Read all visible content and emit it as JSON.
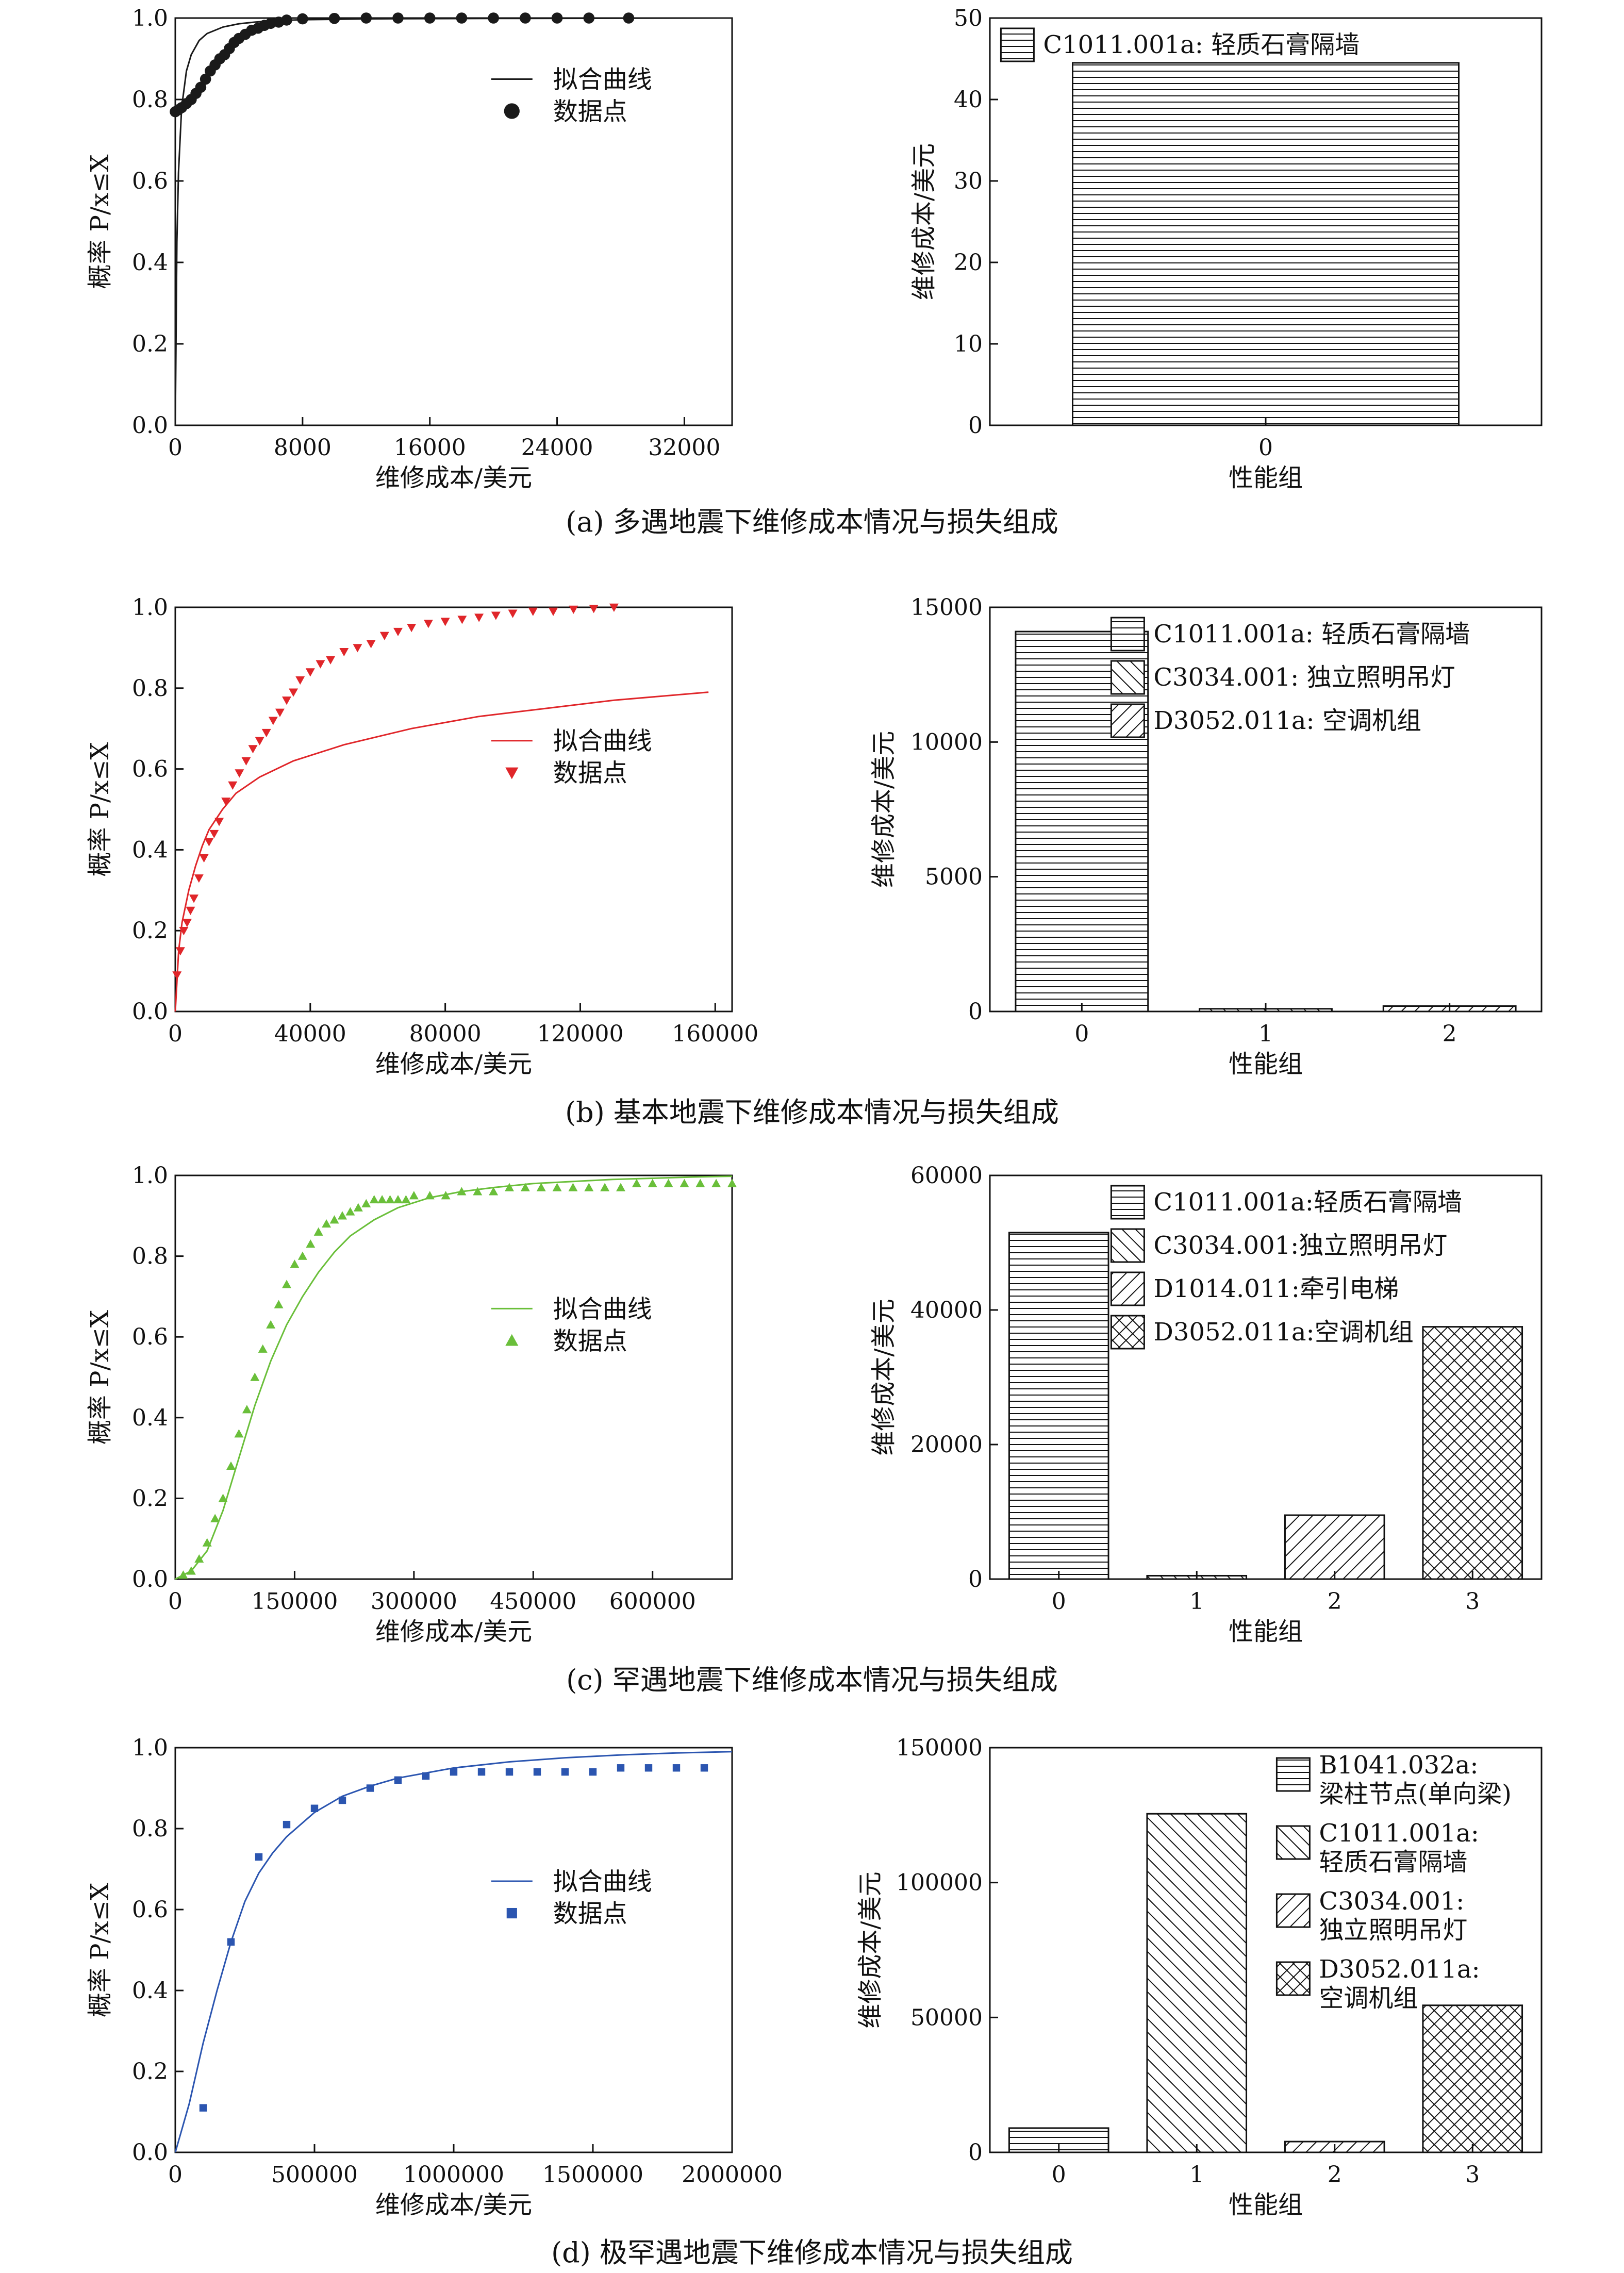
{
  "captions": [
    "(a) 多遇地震下维修成本情况与损失组成",
    "(b) 基本地震下维修成本情况与损失组成",
    "(c) 罕遇地震下维修成本情况与损失组成",
    "(d) 极罕遇地震下维修成本情况与损失组成"
  ],
  "chart_data": [
    {
      "panel": "a-left",
      "type": "line",
      "xlabel": "维修成本/美元",
      "ylabel": "概率 P/x≤X",
      "xlim": [
        0,
        35000
      ],
      "ylim": [
        0,
        1.0
      ],
      "xticks": [
        0,
        8000,
        16000,
        24000,
        32000
      ],
      "yticks": [
        0,
        0.2,
        0.4,
        0.6,
        0.8,
        1.0
      ],
      "color": "#1a1a1a",
      "marker": "circle",
      "legend": [
        "拟合曲线",
        "数据点"
      ],
      "series": [
        {
          "name": "拟合曲线",
          "x": [
            0,
            100,
            200,
            400,
            700,
            1000,
            1500,
            2000,
            3000,
            4000,
            5000,
            6000,
            8000,
            12000,
            20000,
            35000
          ],
          "y": [
            0,
            0.45,
            0.62,
            0.78,
            0.87,
            0.91,
            0.945,
            0.962,
            0.978,
            0.986,
            0.99,
            0.993,
            0.996,
            0.998,
            0.999,
            1.0
          ]
        },
        {
          "name": "数据点",
          "x": [
            0,
            200,
            400,
            700,
            1000,
            1300,
            1600,
            1900,
            2200,
            2500,
            2800,
            3100,
            3400,
            3700,
            4000,
            4400,
            4800,
            5200,
            5600,
            6000,
            6500,
            7000,
            8000,
            10000,
            12000,
            14000,
            16000,
            18000,
            20000,
            22000,
            24000,
            26000,
            28500
          ],
          "y": [
            0.77,
            0.775,
            0.78,
            0.79,
            0.8,
            0.815,
            0.83,
            0.85,
            0.87,
            0.885,
            0.9,
            0.91,
            0.925,
            0.94,
            0.95,
            0.96,
            0.97,
            0.975,
            0.982,
            0.987,
            0.99,
            0.995,
            0.998,
            0.999,
            1.0,
            1.0,
            1.0,
            1.0,
            1.0,
            1.0,
            1.0,
            1.0,
            1.0
          ]
        }
      ]
    },
    {
      "panel": "a-right",
      "type": "bar",
      "xlabel": "性能组",
      "ylabel": "维修成本/美元",
      "ylim": [
        0,
        50
      ],
      "yticks": [
        0,
        10,
        20,
        30,
        40,
        50
      ],
      "categories": [
        "0"
      ],
      "values": [
        44.5
      ],
      "patterns": [
        "hlines"
      ],
      "legend": [
        {
          "label": "C1011.001a: 轻质石膏隔墙",
          "pattern": "hlines"
        }
      ]
    },
    {
      "panel": "b-left",
      "type": "line",
      "xlabel": "维修成本/美元",
      "ylabel": "概率 P/x≤X",
      "xlim": [
        0,
        165000
      ],
      "ylim": [
        0,
        1.0
      ],
      "xticks": [
        0,
        40000,
        80000,
        120000,
        160000
      ],
      "yticks": [
        0,
        0.2,
        0.4,
        0.6,
        0.8,
        1.0
      ],
      "color": "#e0262a",
      "marker": "triangle-down",
      "legend": [
        "拟合曲线",
        "数据点"
      ],
      "series": [
        {
          "name": "拟合曲线",
          "x": [
            0,
            1000,
            2000,
            4000,
            6000,
            8000,
            10000,
            14000,
            18000,
            25000,
            35000,
            50000,
            70000,
            90000,
            110000,
            130000,
            158000
          ],
          "y": [
            0,
            0.15,
            0.22,
            0.3,
            0.36,
            0.41,
            0.45,
            0.5,
            0.54,
            0.58,
            0.62,
            0.66,
            0.7,
            0.73,
            0.75,
            0.77,
            0.79
          ]
        },
        {
          "name": "数据点",
          "x": [
            500,
            1500,
            2500,
            3500,
            4500,
            5500,
            7000,
            8500,
            10000,
            11500,
            13000,
            15000,
            17000,
            19000,
            21000,
            23000,
            25000,
            27000,
            29000,
            31000,
            33000,
            35000,
            37000,
            40000,
            43000,
            46000,
            50000,
            54000,
            58000,
            62000,
            66000,
            70000,
            75000,
            80000,
            85000,
            90000,
            95000,
            100000,
            106000,
            112000,
            118000,
            124000,
            130000
          ],
          "y": [
            0.09,
            0.15,
            0.2,
            0.22,
            0.25,
            0.28,
            0.33,
            0.38,
            0.42,
            0.44,
            0.47,
            0.52,
            0.56,
            0.59,
            0.62,
            0.65,
            0.67,
            0.69,
            0.72,
            0.74,
            0.77,
            0.79,
            0.82,
            0.84,
            0.86,
            0.87,
            0.89,
            0.9,
            0.91,
            0.93,
            0.94,
            0.95,
            0.96,
            0.965,
            0.97,
            0.975,
            0.98,
            0.985,
            0.99,
            0.99,
            0.995,
            0.997,
            1.0
          ]
        }
      ]
    },
    {
      "panel": "b-right",
      "type": "bar",
      "xlabel": "性能组",
      "ylabel": "维修成本/美元",
      "ylim": [
        0,
        15000
      ],
      "yticks": [
        0,
        5000,
        10000,
        15000
      ],
      "categories": [
        "0",
        "1",
        "2"
      ],
      "values": [
        14100,
        100,
        200
      ],
      "patterns": [
        "hlines",
        "backdiag",
        "fwddiag"
      ],
      "legend": [
        {
          "label": "C1011.001a: 轻质石膏隔墙",
          "pattern": "hlines"
        },
        {
          "label": "C3034.001: 独立照明吊灯",
          "pattern": "backdiag"
        },
        {
          "label": "D3052.011a: 空调机组",
          "pattern": "fwddiag"
        }
      ]
    },
    {
      "panel": "c-left",
      "type": "line",
      "xlabel": "维修成本/美元",
      "ylabel": "概率 P/x≤X",
      "xlim": [
        0,
        700000
      ],
      "ylim": [
        0,
        1.0
      ],
      "xticks": [
        0,
        150000,
        300000,
        450000,
        600000
      ],
      "yticks": [
        0,
        0.2,
        0.4,
        0.6,
        0.8,
        1.0
      ],
      "color": "#6abf3a",
      "marker": "triangle-up",
      "legend": [
        "拟合曲线",
        "数据点"
      ],
      "series": [
        {
          "name": "拟合曲线",
          "x": [
            0,
            20000,
            40000,
            60000,
            80000,
            100000,
            120000,
            140000,
            160000,
            180000,
            200000,
            220000,
            250000,
            280000,
            320000,
            360000,
            400000,
            450000,
            500000,
            550000,
            600000,
            650000,
            700000
          ],
          "y": [
            0,
            0.02,
            0.07,
            0.17,
            0.3,
            0.43,
            0.54,
            0.63,
            0.7,
            0.76,
            0.81,
            0.85,
            0.89,
            0.92,
            0.945,
            0.96,
            0.97,
            0.98,
            0.985,
            0.99,
            0.993,
            0.996,
            0.998
          ]
        },
        {
          "name": "数据点",
          "x": [
            10000,
            20000,
            30000,
            40000,
            50000,
            60000,
            70000,
            80000,
            90000,
            100000,
            110000,
            120000,
            130000,
            140000,
            150000,
            160000,
            170000,
            180000,
            190000,
            200000,
            210000,
            220000,
            230000,
            240000,
            250000,
            260000,
            270000,
            280000,
            290000,
            300000,
            320000,
            340000,
            360000,
            380000,
            400000,
            420000,
            440000,
            460000,
            480000,
            500000,
            520000,
            540000,
            560000,
            580000,
            600000,
            620000,
            640000,
            660000,
            680000,
            700000
          ],
          "y": [
            0.01,
            0.02,
            0.05,
            0.09,
            0.15,
            0.2,
            0.28,
            0.36,
            0.42,
            0.5,
            0.57,
            0.63,
            0.68,
            0.73,
            0.78,
            0.8,
            0.83,
            0.86,
            0.88,
            0.89,
            0.9,
            0.91,
            0.92,
            0.93,
            0.94,
            0.94,
            0.94,
            0.94,
            0.94,
            0.95,
            0.95,
            0.95,
            0.96,
            0.96,
            0.96,
            0.97,
            0.97,
            0.97,
            0.97,
            0.97,
            0.97,
            0.97,
            0.97,
            0.98,
            0.98,
            0.98,
            0.98,
            0.98,
            0.98,
            0.98
          ]
        }
      ]
    },
    {
      "panel": "c-right",
      "type": "bar",
      "xlabel": "性能组",
      "ylabel": "维修成本/美元",
      "ylim": [
        0,
        60000
      ],
      "yticks": [
        0,
        20000,
        40000,
        60000
      ],
      "categories": [
        "0",
        "1",
        "2",
        "3"
      ],
      "values": [
        51500,
        500,
        9500,
        37500
      ],
      "patterns": [
        "hlines",
        "backdiag",
        "fwddiag",
        "cross"
      ],
      "legend": [
        {
          "label": "C1011.001a:轻质石膏隔墙",
          "pattern": "hlines"
        },
        {
          "label": "C3034.001:独立照明吊灯",
          "pattern": "backdiag"
        },
        {
          "label": "D1014.011:牵引电梯",
          "pattern": "fwddiag"
        },
        {
          "label": "D3052.011a:空调机组",
          "pattern": "cross"
        }
      ]
    },
    {
      "panel": "d-left",
      "type": "line",
      "xlabel": "维修成本/美元",
      "ylabel": "概率 P/x≤X",
      "xlim": [
        0,
        2000000
      ],
      "ylim": [
        0,
        1.0
      ],
      "xticks": [
        0,
        500000,
        1000000,
        1500000,
        2000000
      ],
      "yticks": [
        0,
        0.2,
        0.4,
        0.6,
        0.8,
        1.0
      ],
      "color": "#2b55b0",
      "marker": "square",
      "legend": [
        "拟合曲线",
        "数据点"
      ],
      "series": [
        {
          "name": "拟合曲线",
          "x": [
            0,
            50000,
            100000,
            150000,
            200000,
            250000,
            300000,
            350000,
            400000,
            500000,
            600000,
            700000,
            800000,
            1000000,
            1200000,
            1400000,
            1600000,
            1800000,
            2000000
          ],
          "y": [
            0,
            0.12,
            0.27,
            0.4,
            0.52,
            0.62,
            0.69,
            0.74,
            0.78,
            0.84,
            0.88,
            0.905,
            0.925,
            0.95,
            0.965,
            0.975,
            0.982,
            0.987,
            0.99
          ]
        },
        {
          "name": "数据点",
          "x": [
            100000,
            200000,
            300000,
            400000,
            500000,
            600000,
            700000,
            800000,
            900000,
            1000000,
            1100000,
            1200000,
            1300000,
            1400000,
            1500000,
            1600000,
            1700000,
            1800000,
            1900000
          ],
          "y": [
            0.11,
            0.52,
            0.73,
            0.81,
            0.85,
            0.87,
            0.9,
            0.92,
            0.93,
            0.94,
            0.94,
            0.94,
            0.94,
            0.94,
            0.94,
            0.95,
            0.95,
            0.95,
            0.95
          ]
        }
      ]
    },
    {
      "panel": "d-right",
      "type": "bar",
      "xlabel": "性能组",
      "ylabel": "维修成本/美元",
      "ylim": [
        0,
        150000
      ],
      "yticks": [
        0,
        50000,
        100000,
        150000
      ],
      "categories": [
        "0",
        "1",
        "2",
        "3"
      ],
      "values": [
        9000,
        125500,
        4000,
        54500
      ],
      "patterns": [
        "hlines",
        "backdiag",
        "fwddiag",
        "cross"
      ],
      "legend": [
        {
          "label": "B1041.032a:",
          "label2": "梁柱节点(单向梁)",
          "pattern": "hlines"
        },
        {
          "label": "C1011.001a:",
          "label2": "轻质石膏隔墙",
          "pattern": "backdiag"
        },
        {
          "label": "C3034.001:",
          "label2": "独立照明吊灯",
          "pattern": "fwddiag"
        },
        {
          "label": "D3052.011a:",
          "label2": "空调机组",
          "pattern": "cross"
        }
      ]
    }
  ]
}
